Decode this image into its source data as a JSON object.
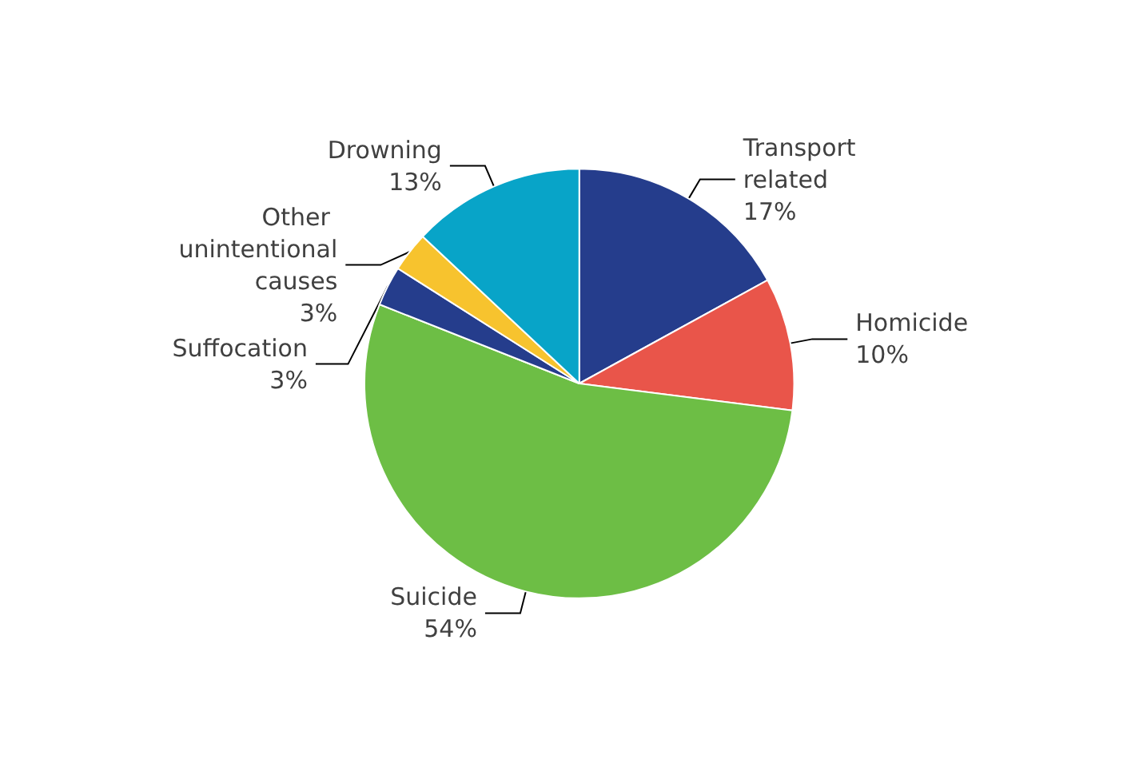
{
  "chart_data": {
    "type": "pie",
    "categories": [
      "Transport related",
      "Homicide",
      "Suicide",
      "Suffocation",
      "Other unintentional causes",
      "Drowning"
    ],
    "values": [
      17,
      10,
      54,
      3,
      3,
      13
    ],
    "colors": [
      "#253d8c",
      "#e9554a",
      "#6dbe45",
      "#253d8c",
      "#f7c32e",
      "#08a4c8"
    ],
    "value_labels": [
      "17%",
      "10%",
      "54%",
      "3%",
      "3%",
      "13%"
    ],
    "legend": false
  }
}
